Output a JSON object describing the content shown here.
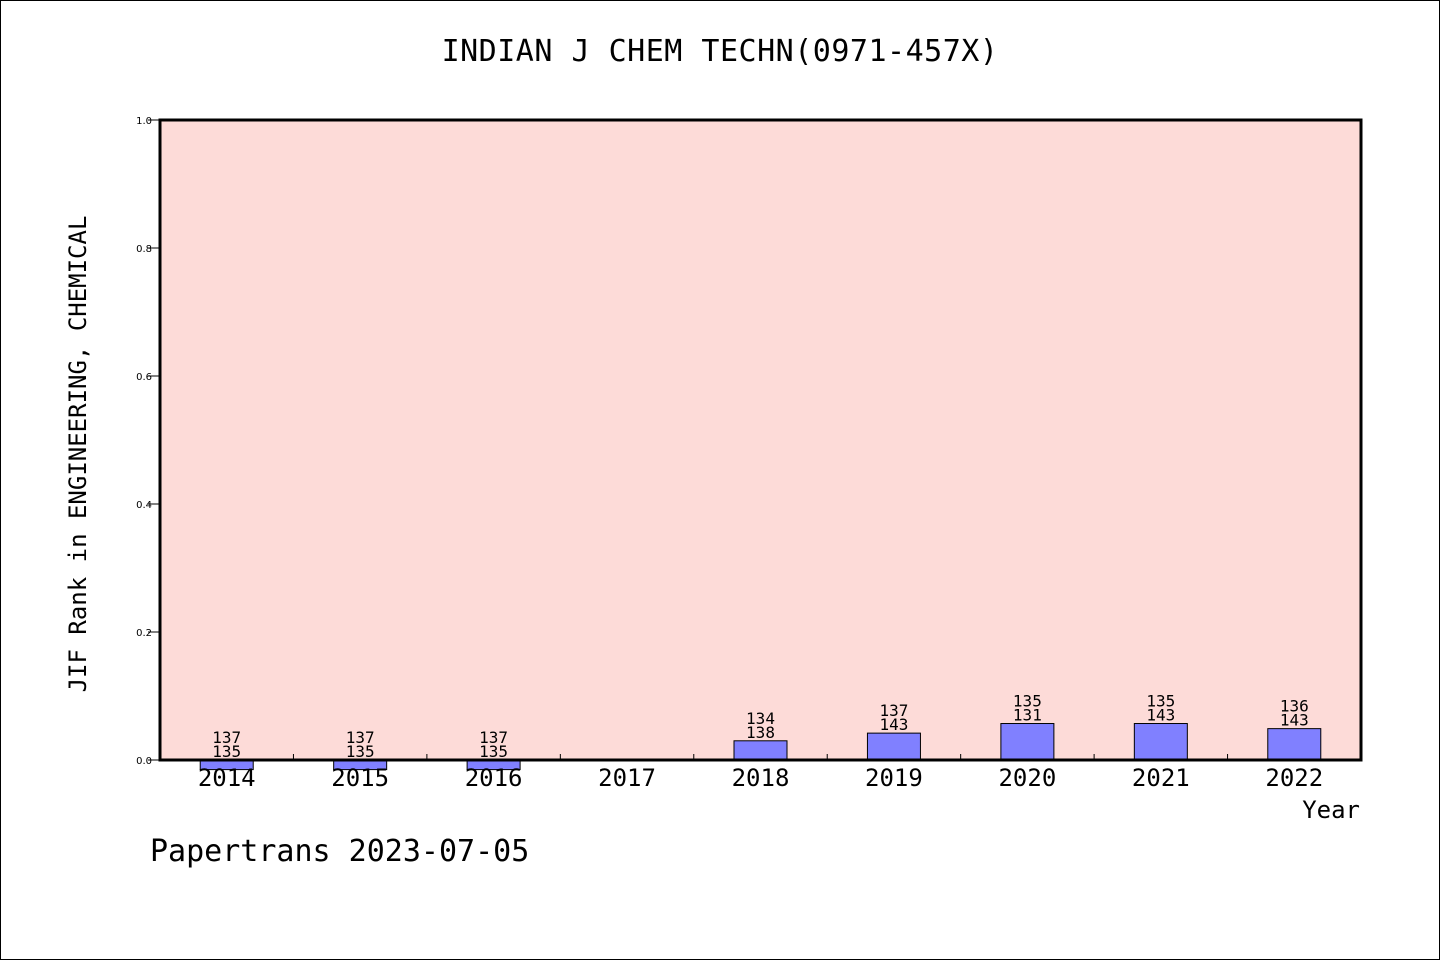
{
  "title": "INDIAN J CHEM TECHN(0971-457X)",
  "footer": "Papertrans 2023-07-05",
  "colors": {
    "plot_bg": "#fddbd8",
    "bar": "#8080ff",
    "axis": "#000000"
  },
  "chart_data": {
    "type": "bar",
    "xlabel": "Year",
    "ylabel": "JIF Rank in ENGINEERING, CHEMICAL",
    "ylim": [
      0,
      1
    ],
    "yticks": [
      "0.0",
      "0.2",
      "0.4",
      "0.6",
      "0.8",
      "1.0"
    ],
    "grid": false,
    "categories": [
      "2014",
      "2015",
      "2016",
      "2017",
      "2018",
      "2019",
      "2020",
      "2021",
      "2022"
    ],
    "values": [
      -0.015,
      -0.015,
      -0.015,
      null,
      0.03,
      0.042,
      0.057,
      0.057,
      0.049
    ],
    "labels_top": [
      "137",
      "137",
      "137",
      "",
      "134",
      "137",
      "135",
      "135",
      "136"
    ],
    "labels_bottom": [
      "135",
      "135",
      "135",
      "",
      "138",
      "143",
      "131",
      "143",
      "143"
    ]
  }
}
